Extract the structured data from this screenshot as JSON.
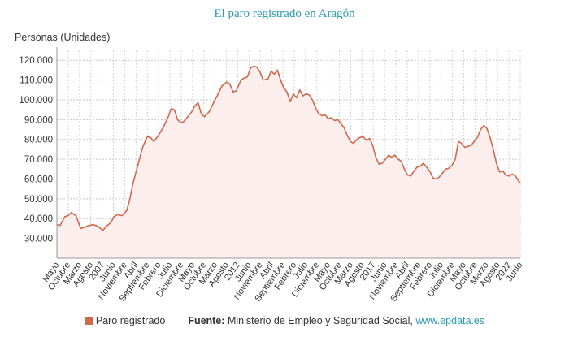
{
  "chart_data": {
    "type": "area",
    "title": "El paro registrado en Aragón",
    "ylabel": "Personas (Unidades)",
    "xlabel": "",
    "ylim": [
      20000,
      125000
    ],
    "yticks": [
      30000,
      40000,
      50000,
      60000,
      70000,
      80000,
      90000,
      100000,
      110000,
      120000
    ],
    "ytick_labels": [
      "30.000",
      "40.000",
      "50.000",
      "60.000",
      "70.000",
      "80.000",
      "90.000",
      "100.000",
      "110.000",
      "120.000"
    ],
    "grid": true,
    "start": "2005-05",
    "end": "2022-06",
    "xtick_labels": [
      "Mayo",
      "Octubre",
      "Marzo",
      "Agosto",
      "2007",
      "Junio",
      "Noviembre",
      "Abril",
      "Septiembre",
      "Febrero",
      "Julio",
      "Diciembre",
      "Mayo",
      "Octubre",
      "Marzo",
      "Agosto",
      "2012",
      "Junio",
      "Noviembre",
      "Abril",
      "Septiembre",
      "Febrero",
      "Julio",
      "Diciembre",
      "Mayo",
      "Octubre",
      "Marzo",
      "Agosto",
      "2017",
      "Junio",
      "Noviembre",
      "Abril",
      "Septiembre",
      "Febrero",
      "Julio",
      "Diciembre",
      "Mayo",
      "Octubre",
      "Marzo",
      "Agosto",
      "2022",
      "Junio"
    ],
    "series": [
      {
        "name": "Paro registrado",
        "color": "#cf6a4c",
        "fill": "#fdeeee",
        "points": [
          [
            0,
            37000
          ],
          [
            2,
            36500
          ],
          [
            5,
            41000
          ],
          [
            7,
            41500
          ],
          [
            9,
            43000
          ],
          [
            12,
            41500
          ],
          [
            15,
            35000
          ],
          [
            17,
            35500
          ],
          [
            20,
            36500
          ],
          [
            23,
            37000
          ],
          [
            26,
            36000
          ],
          [
            29,
            34000
          ],
          [
            31,
            36000
          ],
          [
            34,
            38000
          ],
          [
            36,
            41000
          ],
          [
            38,
            42000
          ],
          [
            41,
            41500
          ],
          [
            44,
            44000
          ],
          [
            46,
            50000
          ],
          [
            48,
            58000
          ],
          [
            51,
            67000
          ],
          [
            54,
            76000
          ],
          [
            57,
            81500
          ],
          [
            59,
            81000
          ],
          [
            61,
            79000
          ],
          [
            64,
            82000
          ],
          [
            67,
            86000
          ],
          [
            70,
            91000
          ],
          [
            72,
            95500
          ],
          [
            74,
            95000
          ],
          [
            76,
            90000
          ],
          [
            78,
            88500
          ],
          [
            80,
            89000
          ],
          [
            82,
            91000
          ],
          [
            85,
            94000
          ],
          [
            87,
            97000
          ],
          [
            89,
            98500
          ],
          [
            91,
            93000
          ],
          [
            93,
            91500
          ],
          [
            96,
            94000
          ],
          [
            99,
            99000
          ],
          [
            101,
            102000
          ],
          [
            104,
            107000
          ],
          [
            107,
            109000
          ],
          [
            109,
            108000
          ],
          [
            111,
            104000
          ],
          [
            113,
            104500
          ],
          [
            116,
            110000
          ],
          [
            118,
            111000
          ],
          [
            120,
            111500
          ],
          [
            122,
            116000
          ],
          [
            124,
            117000
          ],
          [
            126,
            116500
          ],
          [
            128,
            114000
          ],
          [
            130,
            110000
          ],
          [
            133,
            110500
          ],
          [
            135,
            114500
          ],
          [
            137,
            113000
          ],
          [
            139,
            115000
          ],
          [
            141,
            110000
          ],
          [
            143,
            106000
          ],
          [
            145,
            104000
          ],
          [
            147,
            99000
          ],
          [
            149,
            103000
          ],
          [
            151,
            101000
          ],
          [
            153,
            105000
          ],
          [
            155,
            102000
          ],
          [
            157,
            103000
          ],
          [
            159,
            102500
          ],
          [
            161,
            100000
          ],
          [
            163,
            96000
          ],
          [
            165,
            93000
          ],
          [
            167,
            92000
          ],
          [
            169,
            92500
          ],
          [
            171,
            90500
          ],
          [
            173,
            91000
          ],
          [
            175,
            89500
          ],
          [
            177,
            90000
          ],
          [
            179,
            88000
          ],
          [
            181,
            86000
          ],
          [
            183,
            82000
          ],
          [
            185,
            79000
          ],
          [
            187,
            78000
          ],
          [
            189,
            80000
          ],
          [
            191,
            81000
          ],
          [
            193,
            81500
          ],
          [
            195,
            79500
          ],
          [
            197,
            80500
          ],
          [
            199,
            77000
          ],
          [
            201,
            71000
          ],
          [
            203,
            67500
          ],
          [
            205,
            68000
          ],
          [
            207,
            70000
          ],
          [
            209,
            72000
          ],
          [
            211,
            71000
          ],
          [
            213,
            72000
          ],
          [
            215,
            70000
          ],
          [
            217,
            69000
          ],
          [
            219,
            65000
          ],
          [
            221,
            62000
          ],
          [
            223,
            61500
          ],
          [
            225,
            64000
          ],
          [
            227,
            66000
          ],
          [
            229,
            66500
          ],
          [
            231,
            68000
          ],
          [
            233,
            66000
          ],
          [
            235,
            64000
          ],
          [
            237,
            60500
          ],
          [
            239,
            60000
          ],
          [
            241,
            61000
          ],
          [
            243,
            63000
          ],
          [
            245,
            65000
          ],
          [
            247,
            65500
          ],
          [
            249,
            67000
          ],
          [
            251,
            70000
          ],
          [
            253,
            79000
          ],
          [
            255,
            78000
          ],
          [
            257,
            76000
          ],
          [
            259,
            76500
          ],
          [
            261,
            77000
          ],
          [
            263,
            79000
          ],
          [
            265,
            81000
          ],
          [
            267,
            85000
          ],
          [
            269,
            87000
          ],
          [
            271,
            85500
          ],
          [
            273,
            81000
          ],
          [
            275,
            75000
          ],
          [
            277,
            68000
          ],
          [
            279,
            63500
          ],
          [
            281,
            64000
          ],
          [
            283,
            62000
          ],
          [
            285,
            61500
          ],
          [
            287,
            62500
          ],
          [
            289,
            61500
          ],
          [
            291,
            59000
          ],
          [
            292,
            58000
          ]
        ]
      }
    ],
    "legend": "bottom"
  },
  "source": {
    "label": "Fuente:",
    "text": "Ministerio de Empleo y Seguridad Social,",
    "link": "www.epdata.es"
  }
}
